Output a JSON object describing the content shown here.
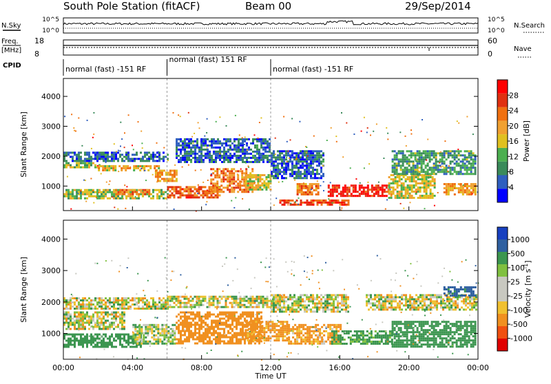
{
  "header": {
    "station": "South Pole Station (fitACF)",
    "beam": "Beam 00",
    "date": "29/Sep/2014"
  },
  "nsky_panel": {
    "label": "N.Sky",
    "left_ticks": [
      "10^5",
      "10^0"
    ],
    "right_label": "N.Search",
    "right_ticks": [
      "10^5",
      "10^0"
    ]
  },
  "freq_panel": {
    "label_lines": [
      "Freq.",
      "[MHz]"
    ],
    "left_ticks": [
      "18",
      "8"
    ],
    "right_label": "Nave",
    "right_ticks": [
      "60",
      "0"
    ]
  },
  "cpid": {
    "label": "CPID",
    "segments": [
      {
        "start_hour": 0,
        "end_hour": 6,
        "text": "normal (fast) -151 RF"
      },
      {
        "start_hour": 6,
        "end_hour": 12,
        "text": "normal (fast) 151 RF"
      },
      {
        "start_hour": 12,
        "end_hour": 24,
        "text": "normal (fast) -151 RF"
      }
    ]
  },
  "colors": {
    "power": [
      "#0000ff",
      "#2f5fbf",
      "#3a8a5a",
      "#4caf50",
      "#e0c020",
      "#f0a030",
      "#f07010",
      "#e03010",
      "#ff0000"
    ],
    "velocity": [
      "#e00000",
      "#f05010",
      "#f09020",
      "#f0c030",
      "#c8c8c0",
      "#c8c8c0",
      "#80c040",
      "#3c9650",
      "#2f60a0",
      "#1840c0"
    ],
    "ground_scatter": "#bebeb4"
  },
  "chart_data": [
    {
      "type": "heatmap",
      "name": "power",
      "x_axis": {
        "label": "Time UT",
        "range_hours": [
          0,
          24
        ],
        "tick_labels": [
          "00:00",
          "04:00",
          "08:00",
          "12:00",
          "16:00",
          "20:00",
          "00:00"
        ]
      },
      "y_axis": {
        "label": "Slant Range [km]",
        "range": [
          180,
          4600
        ],
        "ticks": [
          1000,
          2000,
          3000,
          4000
        ]
      },
      "colorbar": {
        "label": "Power [dB]",
        "range": [
          0,
          32
        ],
        "tick_values": [
          4,
          8,
          12,
          16,
          20,
          24,
          28
        ],
        "tick_labels": [
          "4",
          "8",
          "12",
          "16",
          "20",
          "24",
          "28"
        ]
      },
      "scatter_regions": [
        {
          "t0": 0.0,
          "t1": 2.2,
          "r0": 1650,
          "r1": 1800,
          "value": 14
        },
        {
          "t0": 0.0,
          "t1": 6.0,
          "r0": 1850,
          "r1": 2150,
          "value": 6
        },
        {
          "t0": 2.0,
          "t1": 5.5,
          "r0": 1500,
          "r1": 1700,
          "value": 18
        },
        {
          "t0": 5.3,
          "t1": 6.5,
          "r0": 1200,
          "r1": 1550,
          "value": 20
        },
        {
          "t0": 0.0,
          "t1": 6.0,
          "r0": 600,
          "r1": 900,
          "value": 14
        },
        {
          "t0": 3.0,
          "t1": 5.0,
          "r0": 700,
          "r1": 900,
          "value": 22
        },
        {
          "t0": 6.0,
          "t1": 9.0,
          "r0": 600,
          "r1": 1000,
          "value": 24
        },
        {
          "t0": 8.5,
          "t1": 11.0,
          "r0": 800,
          "r1": 1600,
          "value": 22
        },
        {
          "t0": 10.5,
          "t1": 12.0,
          "r0": 900,
          "r1": 1400,
          "value": 16
        },
        {
          "t0": 6.5,
          "t1": 12.0,
          "r0": 1800,
          "r1": 2600,
          "value": 6
        },
        {
          "t0": 13.5,
          "t1": 14.8,
          "r0": 700,
          "r1": 1100,
          "value": 22
        },
        {
          "t0": 15.3,
          "t1": 18.8,
          "r0": 650,
          "r1": 1050,
          "value": 29
        },
        {
          "t0": 12.0,
          "t1": 15.0,
          "r0": 1300,
          "r1": 2200,
          "value": 6
        },
        {
          "t0": 18.8,
          "t1": 21.5,
          "r0": 600,
          "r1": 1400,
          "value": 16
        },
        {
          "t0": 19.0,
          "t1": 23.9,
          "r0": 1400,
          "r1": 2200,
          "value": 10
        },
        {
          "t0": 22.0,
          "t1": 23.9,
          "r0": 700,
          "r1": 1100,
          "value": 20
        },
        {
          "t0": 12.5,
          "t1": 16.5,
          "r0": 400,
          "r1": 550,
          "value": 26
        }
      ]
    },
    {
      "type": "heatmap",
      "name": "velocity",
      "x_axis": {
        "label": "Time UT",
        "range_hours": [
          0,
          24
        ],
        "tick_labels": [
          "00:00",
          "04:00",
          "08:00",
          "12:00",
          "16:00",
          "20:00",
          "00:00"
        ]
      },
      "y_axis": {
        "label": "Slant Range [km]",
        "range": [
          180,
          4600
        ],
        "ticks": [
          1000,
          2000,
          3000,
          4000
        ]
      },
      "colorbar": {
        "label": "Velocity [m s^-1]",
        "tick_labels": [
          "1000",
          "500",
          "100",
          "25",
          "-25",
          "-100",
          "-500",
          "-1000"
        ]
      },
      "scatter_regions": [
        {
          "t0": 0.0,
          "t1": 6.0,
          "r0": 1800,
          "r1": 2150,
          "value": 0
        },
        {
          "t0": 0.0,
          "t1": 3.5,
          "r0": 1150,
          "r1": 1700,
          "value": 0
        },
        {
          "t0": 0.0,
          "t1": 4.5,
          "r0": 600,
          "r1": 1000,
          "value": 250
        },
        {
          "t0": 4.0,
          "t1": 6.5,
          "r0": 700,
          "r1": 1300,
          "value": 50
        },
        {
          "t0": 6.5,
          "t1": 11.5,
          "r0": 700,
          "r1": 1700,
          "value": -300
        },
        {
          "t0": 10.5,
          "t1": 13.0,
          "r0": 800,
          "r1": 1400,
          "value": -200
        },
        {
          "t0": 6.0,
          "t1": 12.5,
          "r0": 1850,
          "r1": 2200,
          "value": 0
        },
        {
          "t0": 13.0,
          "t1": 16.0,
          "r0": 700,
          "r1": 1300,
          "value": -150
        },
        {
          "t0": 15.5,
          "t1": 19.0,
          "r0": 650,
          "r1": 1100,
          "value": 200
        },
        {
          "t0": 19.0,
          "t1": 23.9,
          "r0": 600,
          "r1": 1400,
          "value": 300
        },
        {
          "t0": 12.0,
          "t1": 16.5,
          "r0": 1700,
          "r1": 2250,
          "value": 0
        },
        {
          "t0": 17.5,
          "t1": 23.9,
          "r0": 1750,
          "r1": 2250,
          "value": 0
        },
        {
          "t0": 22.0,
          "t1": 23.9,
          "r0": 2200,
          "r1": 2500,
          "value": 600
        }
      ]
    }
  ]
}
